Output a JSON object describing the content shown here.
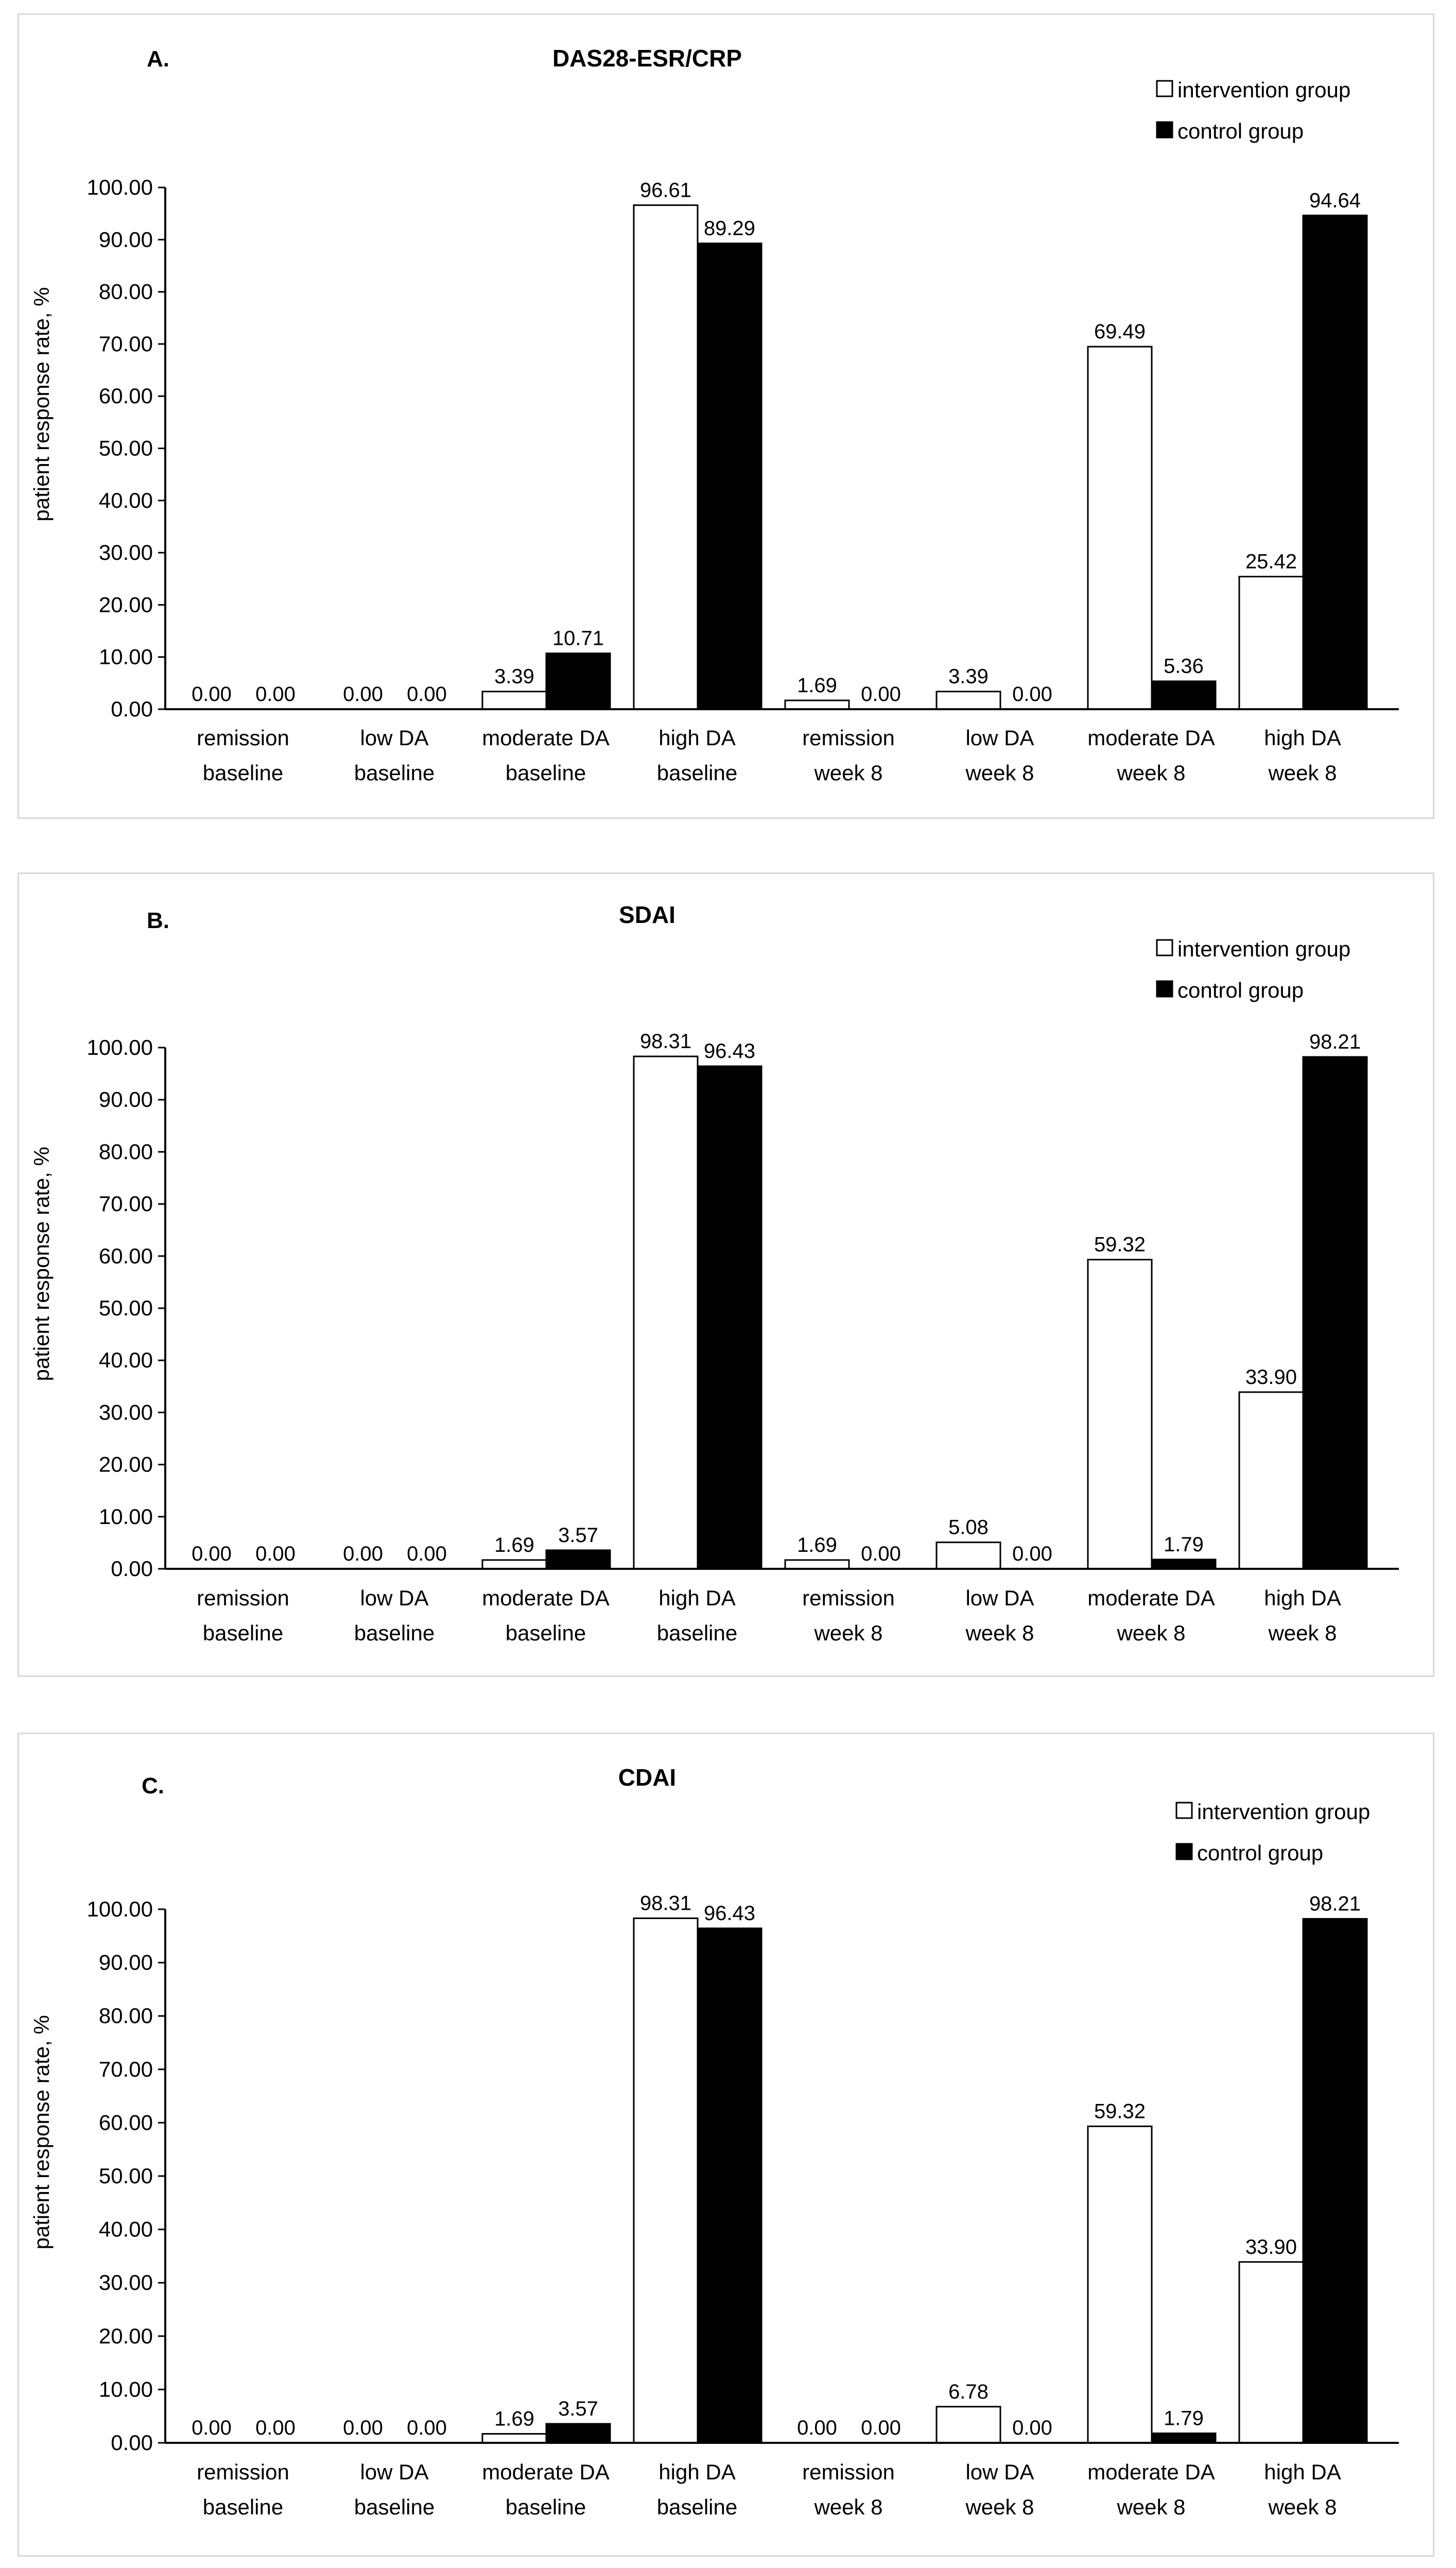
{
  "legend": {
    "intervention": "intervention group",
    "control": "control group"
  },
  "colors": {
    "intervention": "#ffffff",
    "control": "#000000",
    "border": "#000000"
  },
  "ylabel": "patient response rate, %",
  "categories": [
    [
      "remission",
      "baseline"
    ],
    [
      "low DA",
      "baseline"
    ],
    [
      "moderate DA",
      "baseline"
    ],
    [
      "high DA",
      "baseline"
    ],
    [
      "remission",
      "week 8"
    ],
    [
      "low DA",
      "week 8"
    ],
    [
      "moderate DA",
      "week 8"
    ],
    [
      "high DA",
      "week 8"
    ]
  ],
  "yticks": [
    "0.00",
    "10.00",
    "20.00",
    "30.00",
    "40.00",
    "50.00",
    "60.00",
    "70.00",
    "80.00",
    "90.00",
    "100.00"
  ],
  "chart_data": [
    {
      "type": "bar",
      "panel": "A.",
      "title": "DAS28-ESR/CRP",
      "ylim": [
        0,
        100
      ],
      "series": [
        {
          "name": "intervention group",
          "values": [
            0.0,
            0.0,
            3.39,
            96.61,
            1.69,
            3.39,
            69.49,
            25.42
          ],
          "labels": [
            "0.00",
            "0.00",
            "3.39",
            "96.61",
            "1.69",
            "3.39",
            "69.49",
            "25.42"
          ]
        },
        {
          "name": "control group",
          "values": [
            0.0,
            0.0,
            10.71,
            89.29,
            0.0,
            0.0,
            5.36,
            94.64
          ],
          "labels": [
            "0.00",
            "0.00",
            "10.71",
            "89.29",
            "0.00",
            "0.00",
            "5.36",
            "94.64"
          ]
        }
      ]
    },
    {
      "type": "bar",
      "panel": "B.",
      "title": "SDAI",
      "ylim": [
        0,
        100
      ],
      "series": [
        {
          "name": "intervention group",
          "values": [
            0.0,
            0.0,
            1.69,
            98.31,
            1.69,
            5.08,
            59.32,
            33.9
          ],
          "labels": [
            "0.00",
            "0.00",
            "1.69",
            "98.31",
            "1.69",
            "5.08",
            "59.32",
            "33.90"
          ]
        },
        {
          "name": "control group",
          "values": [
            0.0,
            0.0,
            3.57,
            96.43,
            0.0,
            0.0,
            1.79,
            98.21
          ],
          "labels": [
            "0.00",
            "0.00",
            "3.57",
            "96.43",
            "0.00",
            "0.00",
            "1.79",
            "98.21"
          ]
        }
      ]
    },
    {
      "type": "bar",
      "panel": "C.",
      "title": "CDAI",
      "ylim": [
        0,
        100
      ],
      "series": [
        {
          "name": "intervention group",
          "values": [
            0.0,
            0.0,
            1.69,
            98.31,
            0.0,
            6.78,
            59.32,
            33.9
          ],
          "labels": [
            "0.00",
            "0.00",
            "1.69",
            "98.31",
            "0.00",
            "6.78",
            "59.32",
            "33.90"
          ]
        },
        {
          "name": "control group",
          "values": [
            0.0,
            0.0,
            3.57,
            96.43,
            0.0,
            0.0,
            1.79,
            98.21
          ],
          "labels": [
            "0.00",
            "0.00",
            "3.57",
            "96.43",
            "0.00",
            "0.00",
            "1.79",
            "98.21"
          ]
        }
      ]
    }
  ]
}
